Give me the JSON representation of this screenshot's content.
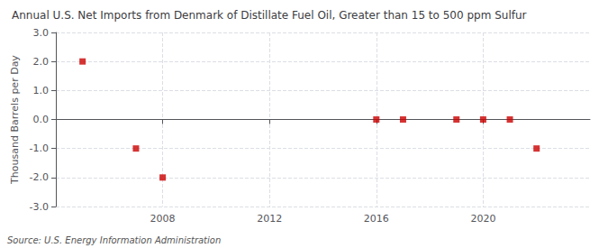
{
  "chart_data": {
    "type": "scatter",
    "title": "Annual U.S. Net Imports from Denmark of Distillate Fuel Oil, Greater than 15 to 500 ppm Sulfur",
    "ylabel": "Thousand Barrels per Day",
    "source": "Source: U.S. Energy Information Administration",
    "x": [
      2005,
      2007,
      2008,
      2016,
      2017,
      2019,
      2020,
      2021,
      2022
    ],
    "values": [
      2.0,
      -1.0,
      -2.0,
      0.0,
      0.0,
      0.0,
      0.0,
      0.0,
      -1.0
    ],
    "color": "#cc0000",
    "marker": "square",
    "xlim": [
      2004,
      2024
    ],
    "xticks": [
      2008,
      2012,
      2016,
      2020
    ],
    "ylim": [
      -3.0,
      3.0
    ],
    "yticks": [
      {
        "value": -3.0,
        "label": "-3.0"
      },
      {
        "value": -2.0,
        "label": "-2.0"
      },
      {
        "value": -1.0,
        "label": "-1.0"
      },
      {
        "value": 0.0,
        "label": "0.0"
      },
      {
        "value": 1.0,
        "label": "1.0"
      },
      {
        "value": 2.0,
        "label": "2.0"
      },
      {
        "value": 3.0,
        "label": "3.0"
      }
    ],
    "grid": true
  }
}
